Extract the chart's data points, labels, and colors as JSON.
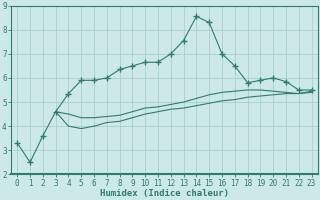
{
  "xlabel": "Humidex (Indice chaleur)",
  "ylabel": "",
  "background_color": "#cce8e8",
  "line_color": "#2e7d6e",
  "grid_color": "#aacfcf",
  "border_color": "#2e7d6e",
  "x_values": [
    0,
    1,
    2,
    3,
    4,
    5,
    6,
    7,
    8,
    9,
    10,
    11,
    12,
    13,
    14,
    15,
    16,
    17,
    18,
    19,
    20,
    21,
    22,
    23
  ],
  "line1": [
    3.3,
    2.5,
    3.6,
    4.6,
    5.35,
    5.9,
    5.9,
    6.0,
    6.35,
    6.5,
    6.65,
    6.65,
    7.0,
    7.55,
    8.55,
    8.3,
    7.0,
    6.5,
    5.8,
    5.9,
    6.0,
    5.85,
    5.5,
    5.5
  ],
  "line2": [
    null,
    null,
    null,
    4.6,
    4.5,
    4.35,
    4.35,
    4.4,
    4.45,
    4.6,
    4.75,
    4.8,
    4.9,
    5.0,
    5.15,
    5.3,
    5.4,
    5.45,
    5.5,
    5.5,
    5.45,
    5.4,
    5.35,
    5.4
  ],
  "line3": [
    null,
    null,
    null,
    4.6,
    4.0,
    3.9,
    4.0,
    4.15,
    4.2,
    4.35,
    4.5,
    4.6,
    4.7,
    4.75,
    4.85,
    4.95,
    5.05,
    5.1,
    5.2,
    5.25,
    5.3,
    5.35,
    5.35,
    5.45
  ],
  "ylim": [
    2,
    9
  ],
  "xlim": [
    -0.5,
    23.5
  ],
  "yticks": [
    2,
    3,
    4,
    5,
    6,
    7,
    8,
    9
  ],
  "xticks": [
    0,
    1,
    2,
    3,
    4,
    5,
    6,
    7,
    8,
    9,
    10,
    11,
    12,
    13,
    14,
    15,
    16,
    17,
    18,
    19,
    20,
    21,
    22,
    23
  ],
  "marker": "+",
  "markersize": 4,
  "markeredgewidth": 1.0,
  "linewidth": 0.8,
  "tick_fontsize": 5.5,
  "xlabel_fontsize": 6.5,
  "xlabel_fontweight": "bold"
}
